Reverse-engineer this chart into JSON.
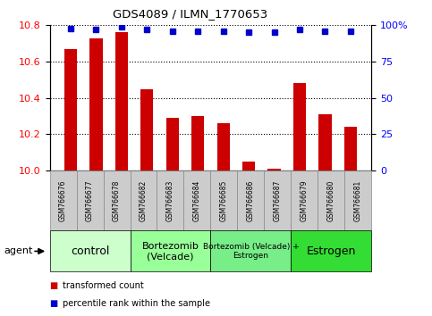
{
  "title": "GDS4089 / ILMN_1770653",
  "samples": [
    "GSM766676",
    "GSM766677",
    "GSM766678",
    "GSM766682",
    "GSM766683",
    "GSM766684",
    "GSM766685",
    "GSM766686",
    "GSM766687",
    "GSM766679",
    "GSM766680",
    "GSM766681"
  ],
  "bar_values": [
    10.67,
    10.73,
    10.76,
    10.45,
    10.29,
    10.3,
    10.26,
    10.05,
    10.01,
    10.48,
    10.31,
    10.24
  ],
  "percentile_values": [
    98,
    97,
    99,
    97,
    96,
    96,
    96,
    95,
    95,
    97,
    96,
    96
  ],
  "ylim_left": [
    10.0,
    10.8
  ],
  "ylim_right": [
    0,
    100
  ],
  "yticks_left": [
    10.0,
    10.2,
    10.4,
    10.6,
    10.8
  ],
  "yticks_right": [
    0,
    25,
    50,
    75,
    100
  ],
  "bar_color": "#cc0000",
  "dot_color": "#0000cc",
  "bar_width": 0.5,
  "groups": [
    {
      "label": "control",
      "start": 0,
      "end": 3,
      "color": "#ccffcc"
    },
    {
      "label": "Bortezomib\n(Velcade)",
      "start": 3,
      "end": 6,
      "color": "#99ff99"
    },
    {
      "label": "Bortezomib (Velcade) +\nEstrogen",
      "start": 6,
      "end": 9,
      "color": "#77ee88"
    },
    {
      "label": "Estrogen",
      "start": 9,
      "end": 12,
      "color": "#33dd33"
    }
  ],
  "legend_items": [
    {
      "label": "transformed count",
      "color": "#cc0000"
    },
    {
      "label": "percentile rank within the sample",
      "color": "#0000cc"
    }
  ],
  "agent_label": "agent",
  "background_color": "#ffffff",
  "sample_box_color": "#cccccc",
  "sample_box_edge": "#888888"
}
